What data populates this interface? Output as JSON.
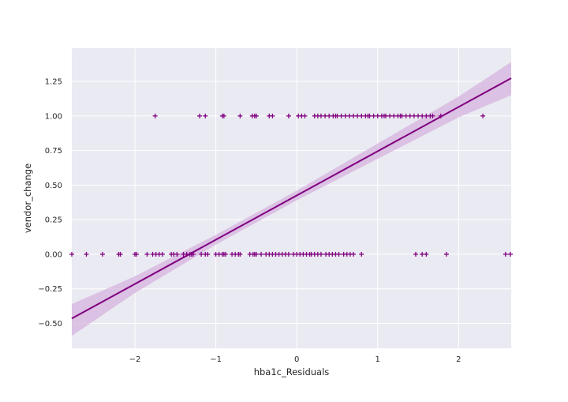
{
  "chart_data": {
    "type": "scatter",
    "title": "",
    "xlabel": "hba1c_Residuals",
    "ylabel": "vendor_change",
    "xlim": [
      -2.78,
      2.65
    ],
    "ylim": [
      -0.68,
      1.49
    ],
    "xticks": [
      -2,
      -1,
      0,
      1,
      2
    ],
    "xtick_labels": [
      "−2",
      "−1",
      "0",
      "1",
      "2"
    ],
    "yticks": [
      -0.5,
      -0.25,
      0.0,
      0.25,
      0.5,
      0.75,
      1.0,
      1.25
    ],
    "ytick_labels": [
      "−0.50",
      "−0.25",
      "0.00",
      "0.25",
      "0.50",
      "0.75",
      "1.00",
      "1.25"
    ],
    "grid": true,
    "marker": "+",
    "point_color": "#800080",
    "background_color": "#eaeaf2",
    "regression": {
      "intercept": 0.425,
      "slope": 0.32,
      "ci_band": {
        "x": [
          -2.78,
          -2.0,
          -1.0,
          0.0,
          1.0,
          2.0,
          2.65
        ],
        "lower": [
          -0.59,
          -0.28,
          0.07,
          0.39,
          0.69,
          0.99,
          1.15
        ],
        "upper": [
          -0.36,
          -0.16,
          0.14,
          0.46,
          0.8,
          1.14,
          1.39
        ]
      },
      "band_color": "#d6b3dd"
    },
    "series": [
      {
        "y": 1.0,
        "x": [
          -1.75,
          -1.2,
          -1.13,
          -0.92,
          -0.9,
          -0.7,
          -0.55,
          -0.52,
          -0.5,
          -0.34,
          -0.3,
          -0.1,
          0.02,
          0.06,
          0.1,
          0.22,
          0.26,
          0.3,
          0.35,
          0.4,
          0.45,
          0.48,
          0.5,
          0.55,
          0.6,
          0.65,
          0.7,
          0.75,
          0.8,
          0.85,
          0.88,
          0.9,
          0.95,
          1.0,
          1.05,
          1.08,
          1.1,
          1.15,
          1.2,
          1.25,
          1.28,
          1.3,
          1.35,
          1.4,
          1.45,
          1.5,
          1.55,
          1.6,
          1.65,
          1.68,
          1.78,
          2.3
        ]
      },
      {
        "y": 0.0,
        "x": [
          -2.78,
          -2.6,
          -2.4,
          -2.2,
          -2.18,
          -2.0,
          -1.98,
          -1.85,
          -1.78,
          -1.74,
          -1.7,
          -1.66,
          -1.55,
          -1.52,
          -1.48,
          -1.4,
          -1.36,
          -1.32,
          -1.3,
          -1.28,
          -1.18,
          -1.13,
          -1.1,
          -1.0,
          -0.96,
          -0.92,
          -0.9,
          -0.88,
          -0.8,
          -0.76,
          -0.72,
          -0.7,
          -0.58,
          -0.54,
          -0.52,
          -0.5,
          -0.44,
          -0.38,
          -0.34,
          -0.3,
          -0.26,
          -0.22,
          -0.18,
          -0.14,
          -0.1,
          -0.04,
          0.0,
          0.04,
          0.08,
          0.12,
          0.16,
          0.18,
          0.22,
          0.26,
          0.3,
          0.36,
          0.4,
          0.44,
          0.48,
          0.52,
          0.58,
          0.62,
          0.66,
          0.7,
          0.8,
          1.47,
          1.55,
          1.6,
          1.85,
          2.58,
          2.64
        ]
      }
    ]
  }
}
